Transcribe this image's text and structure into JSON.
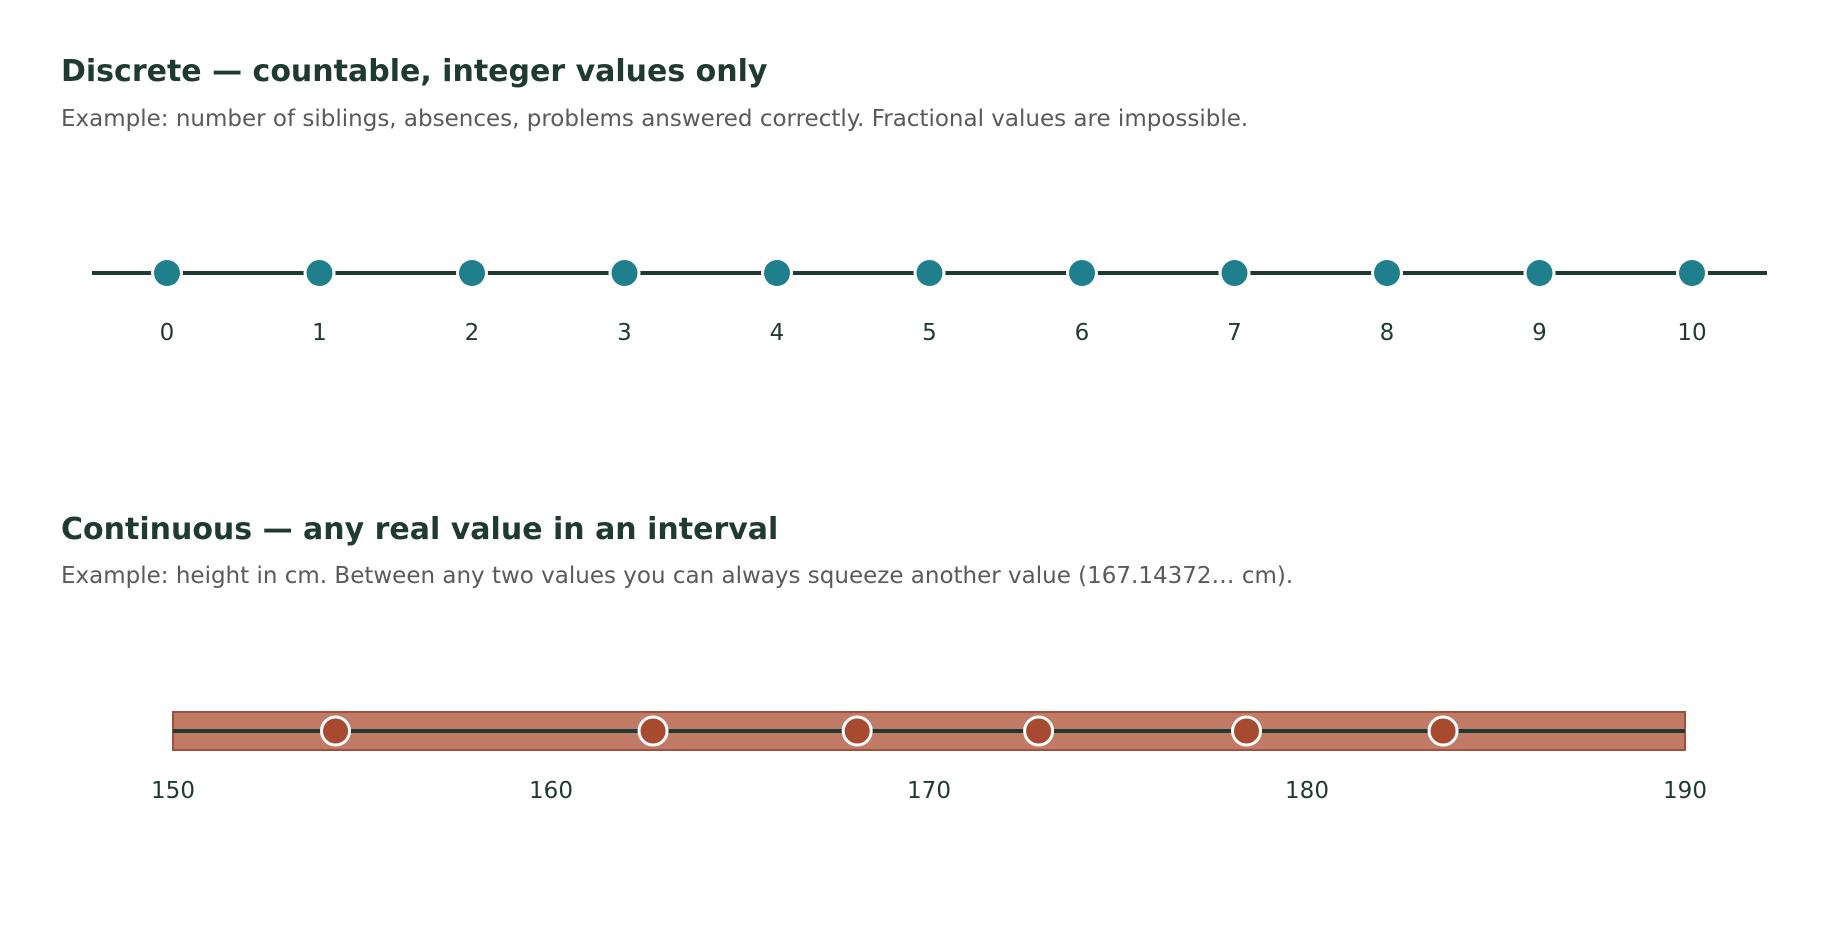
{
  "colors": {
    "axis": "#1f3a30",
    "discrete_dot": "#1f7f8c",
    "band_fill": "#c07a66",
    "band_stroke": "#a0503c",
    "continuous_dot": "#a84a30",
    "dot_outline": "#ffffff"
  },
  "discrete": {
    "title": "Discrete — countable, integer values only",
    "subtitle": "Example: number of siblings, absences, problems answered correctly. Fractional values are impossible.",
    "values": [
      0,
      1,
      2,
      3,
      4,
      5,
      6,
      7,
      8,
      9,
      10
    ]
  },
  "continuous": {
    "title": "Continuous — any real value in an interval",
    "subtitle": "Example: height in cm. Between any two values you can always squeeze another value (167.14372… cm).",
    "range": [
      150,
      190
    ],
    "ticks": [
      150,
      160,
      170,
      180,
      190
    ],
    "points": [
      154.3,
      162.7,
      168.1,
      172.9,
      178.4,
      183.6
    ]
  }
}
